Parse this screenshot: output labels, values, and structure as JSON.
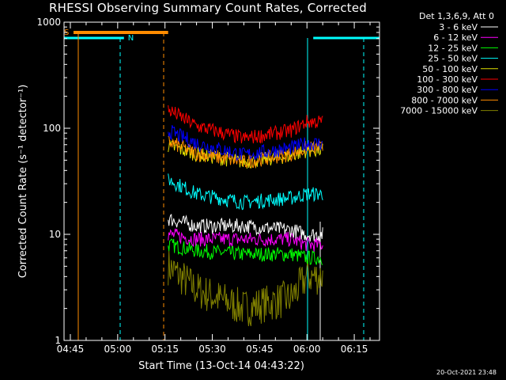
{
  "chart_data": {
    "type": "line",
    "title": "RHESSI Observing Summary Count Rates, Corrected",
    "xlabel": "Start Time (13-Oct-14 04:43:22)",
    "ylabel": "Corrected Count Rate (s⁻¹ detector⁻¹)",
    "y_scale": "log",
    "ylim": [
      1,
      1000
    ],
    "xlim": [
      "04:43",
      "06:23"
    ],
    "x_ticks": [
      "04:45",
      "05:00",
      "05:15",
      "05:30",
      "05:45",
      "06:00",
      "06:15"
    ],
    "y_ticks": [
      "1",
      "10",
      "100",
      "1000"
    ],
    "legend_header": "Det 1,3,6,9, Att 0",
    "legend_position": "top-right, outside plot",
    "series": [
      {
        "name": "3 - 6 keV",
        "color": "#ffffff",
        "x": [
          "05:16",
          "05:25",
          "05:40",
          "05:55",
          "06:00"
        ],
        "y": [
          14,
          12,
          12,
          11,
          10
        ]
      },
      {
        "name": "6 - 12 keV",
        "color": "#ff00ff",
        "x": [
          "05:16",
          "05:25",
          "05:40",
          "05:55",
          "06:00"
        ],
        "y": [
          10,
          9,
          9,
          9,
          8
        ]
      },
      {
        "name": "12 - 25 keV",
        "color": "#00ff00",
        "x": [
          "05:16",
          "05:25",
          "05:40",
          "05:55",
          "06:00"
        ],
        "y": [
          8,
          7,
          6.5,
          6.5,
          6
        ]
      },
      {
        "name": "25 - 50 keV",
        "color": "#00ffff",
        "x": [
          "05:16",
          "05:25",
          "05:40",
          "05:55",
          "06:00"
        ],
        "y": [
          33,
          24,
          20,
          22,
          24
        ]
      },
      {
        "name": "50 - 100 keV",
        "color": "#e0e000",
        "x": [
          "05:16",
          "05:25",
          "05:40",
          "05:55",
          "06:00"
        ],
        "y": [
          68,
          57,
          48,
          55,
          62
        ]
      },
      {
        "name": "100 - 300 keV",
        "color": "#ff0000",
        "x": [
          "05:16",
          "05:25",
          "05:40",
          "05:55",
          "06:00"
        ],
        "y": [
          150,
          105,
          80,
          95,
          115
        ]
      },
      {
        "name": "300 - 800 keV",
        "color": "#0000ff",
        "x": [
          "05:16",
          "05:25",
          "05:40",
          "05:55",
          "06:00"
        ],
        "y": [
          95,
          72,
          56,
          65,
          72
        ]
      },
      {
        "name": "800 - 7000 keV",
        "color": "#ff8c00",
        "x": [
          "05:16",
          "05:25",
          "05:40",
          "05:55",
          "06:00"
        ],
        "y": [
          75,
          58,
          48,
          57,
          65
        ]
      },
      {
        "name": "7000 - 15000 keV",
        "color": "#808000",
        "x": [
          "05:16",
          "05:25",
          "05:40",
          "05:55",
          "06:00"
        ],
        "y": [
          5,
          3,
          2,
          2.5,
          4
        ]
      }
    ],
    "annotations": [
      {
        "text": "S",
        "color": "#ff8c00",
        "x_start": "04:46",
        "x_end": "05:16"
      },
      {
        "text": "N",
        "color": "#00ffff",
        "x_start": "04:43",
        "x_end": "05:02"
      }
    ]
  },
  "footer": {
    "timestamp": "20-Oct-2021 23:48"
  }
}
